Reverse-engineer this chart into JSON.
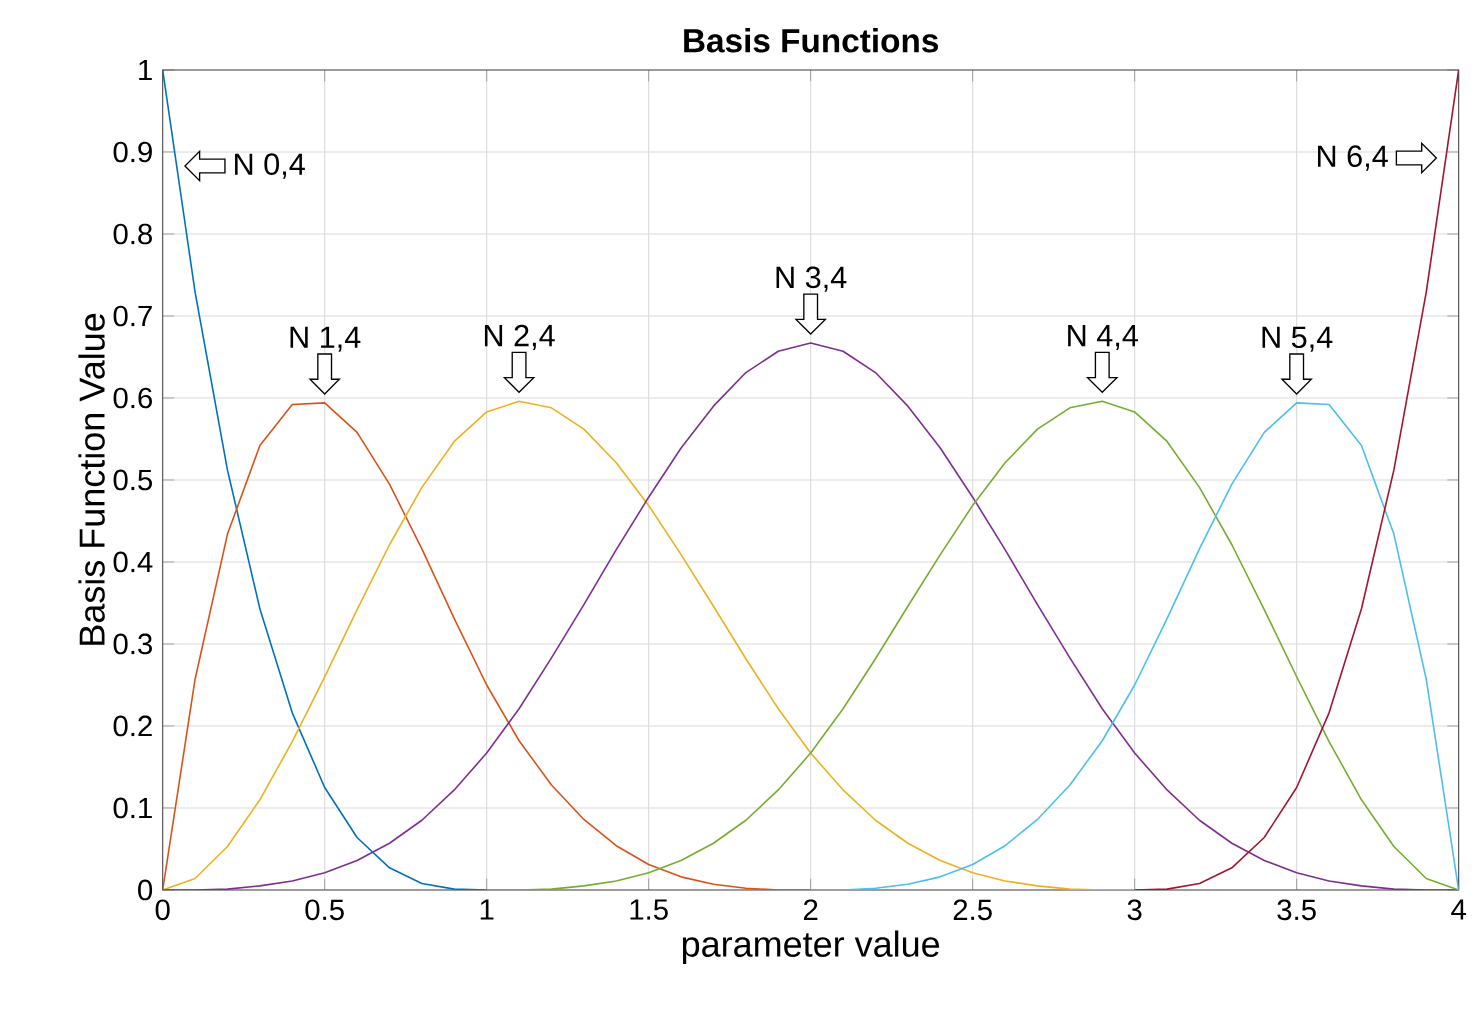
{
  "chart_data": {
    "type": "line",
    "title": "Basis Functions",
    "xlabel": "parameter value",
    "ylabel": "Basis Function Value",
    "xlim": [
      0,
      4
    ],
    "ylim": [
      0,
      1
    ],
    "xticks": [
      0,
      0.5,
      1,
      1.5,
      2,
      2.5,
      3,
      3.5,
      4
    ],
    "yticks": [
      0,
      0.1,
      0.2,
      0.3,
      0.4,
      0.5,
      0.6,
      0.7,
      0.8,
      0.9,
      1
    ],
    "grid": true,
    "marker": "none",
    "line_style": "solid",
    "series": [
      {
        "color": "#0072bd",
        "x": [
          0,
          0.1,
          0.2,
          0.3,
          0.4,
          0.5,
          0.6,
          0.7,
          0.8,
          0.9,
          1
        ],
        "values": [
          1,
          0.729,
          0.512,
          0.343,
          0.216,
          0.125,
          0.064,
          0.027,
          0.008,
          0.001,
          0
        ]
      },
      {
        "color": "#d95319",
        "x": [
          0,
          0.1,
          0.2,
          0.3,
          0.4,
          0.5,
          0.6,
          0.7,
          0.8,
          0.9,
          1,
          1.1,
          1.2,
          1.3,
          1.4,
          1.5,
          1.6,
          1.7,
          1.8,
          1.9,
          2
        ],
        "values": [
          0,
          0.257,
          0.434,
          0.542,
          0.592,
          0.594,
          0.558,
          0.495,
          0.416,
          0.331,
          0.25,
          0.182,
          0.128,
          0.086,
          0.054,
          0.031,
          0.016,
          0.007,
          0.002,
          0,
          0
        ]
      },
      {
        "color": "#edb120",
        "x": [
          0,
          0.1,
          0.2,
          0.3,
          0.4,
          0.5,
          0.6,
          0.7,
          0.8,
          0.9,
          1,
          1.1,
          1.2,
          1.3,
          1.4,
          1.5,
          1.6,
          1.7,
          1.8,
          1.9,
          2,
          2.1,
          2.2,
          2.3,
          2.4,
          2.5,
          2.6,
          2.7,
          2.8,
          2.9,
          3
        ],
        "values": [
          0,
          0.014,
          0.053,
          0.11,
          0.181,
          0.26,
          0.342,
          0.421,
          0.491,
          0.547,
          0.583,
          0.596,
          0.588,
          0.562,
          0.521,
          0.469,
          0.409,
          0.346,
          0.282,
          0.221,
          0.167,
          0.122,
          0.085,
          0.057,
          0.036,
          0.021,
          0.011,
          0.005,
          0.001,
          0,
          0
        ]
      },
      {
        "color": "#7e2f8e",
        "x": [
          0,
          0.1,
          0.2,
          0.3,
          0.4,
          0.5,
          0.6,
          0.7,
          0.8,
          0.9,
          1,
          1.1,
          1.2,
          1.3,
          1.4,
          1.5,
          1.6,
          1.7,
          1.8,
          1.9,
          2,
          2.1,
          2.2,
          2.3,
          2.4,
          2.5,
          2.6,
          2.7,
          2.8,
          2.9,
          3,
          3.1,
          3.2,
          3.3,
          3.4,
          3.5,
          3.6,
          3.7,
          3.8,
          3.9,
          4
        ],
        "values": [
          0,
          0,
          0.001,
          0.005,
          0.011,
          0.021,
          0.036,
          0.057,
          0.085,
          0.122,
          0.167,
          0.221,
          0.283,
          0.348,
          0.415,
          0.479,
          0.539,
          0.59,
          0.631,
          0.657,
          0.667,
          0.657,
          0.631,
          0.59,
          0.539,
          0.479,
          0.415,
          0.348,
          0.283,
          0.221,
          0.167,
          0.122,
          0.085,
          0.057,
          0.036,
          0.021,
          0.011,
          0.005,
          0.001,
          0,
          0
        ]
      },
      {
        "color": "#77ac30",
        "x": [
          1,
          1.1,
          1.2,
          1.3,
          1.4,
          1.5,
          1.6,
          1.7,
          1.8,
          1.9,
          2,
          2.1,
          2.2,
          2.3,
          2.4,
          2.5,
          2.6,
          2.7,
          2.8,
          2.9,
          3,
          3.1,
          3.2,
          3.3,
          3.4,
          3.5,
          3.6,
          3.7,
          3.8,
          3.9,
          4
        ],
        "values": [
          0,
          0,
          0.001,
          0.005,
          0.011,
          0.021,
          0.036,
          0.057,
          0.085,
          0.122,
          0.167,
          0.221,
          0.282,
          0.346,
          0.409,
          0.469,
          0.521,
          0.562,
          0.588,
          0.596,
          0.583,
          0.547,
          0.491,
          0.421,
          0.342,
          0.26,
          0.181,
          0.11,
          0.053,
          0.014,
          0
        ]
      },
      {
        "color": "#4dbeee",
        "x": [
          2,
          2.1,
          2.2,
          2.3,
          2.4,
          2.5,
          2.6,
          2.7,
          2.8,
          2.9,
          3,
          3.1,
          3.2,
          3.3,
          3.4,
          3.5,
          3.6,
          3.7,
          3.8,
          3.9,
          4
        ],
        "values": [
          0,
          0,
          0.002,
          0.007,
          0.016,
          0.031,
          0.054,
          0.086,
          0.128,
          0.182,
          0.25,
          0.331,
          0.416,
          0.495,
          0.558,
          0.594,
          0.592,
          0.542,
          0.434,
          0.257,
          0
        ]
      },
      {
        "color": "#a2142f",
        "x": [
          3,
          3.1,
          3.2,
          3.3,
          3.4,
          3.5,
          3.6,
          3.7,
          3.8,
          3.9,
          4
        ],
        "values": [
          0,
          0.001,
          0.008,
          0.027,
          0.064,
          0.125,
          0.216,
          0.343,
          0.512,
          0.729,
          1
        ]
      }
    ],
    "annotations": [
      "N 0,4",
      "N 1,4",
      "N 2,4",
      "N 3,4",
      "N 4,4",
      "N 5,4",
      "N 6,4"
    ]
  }
}
